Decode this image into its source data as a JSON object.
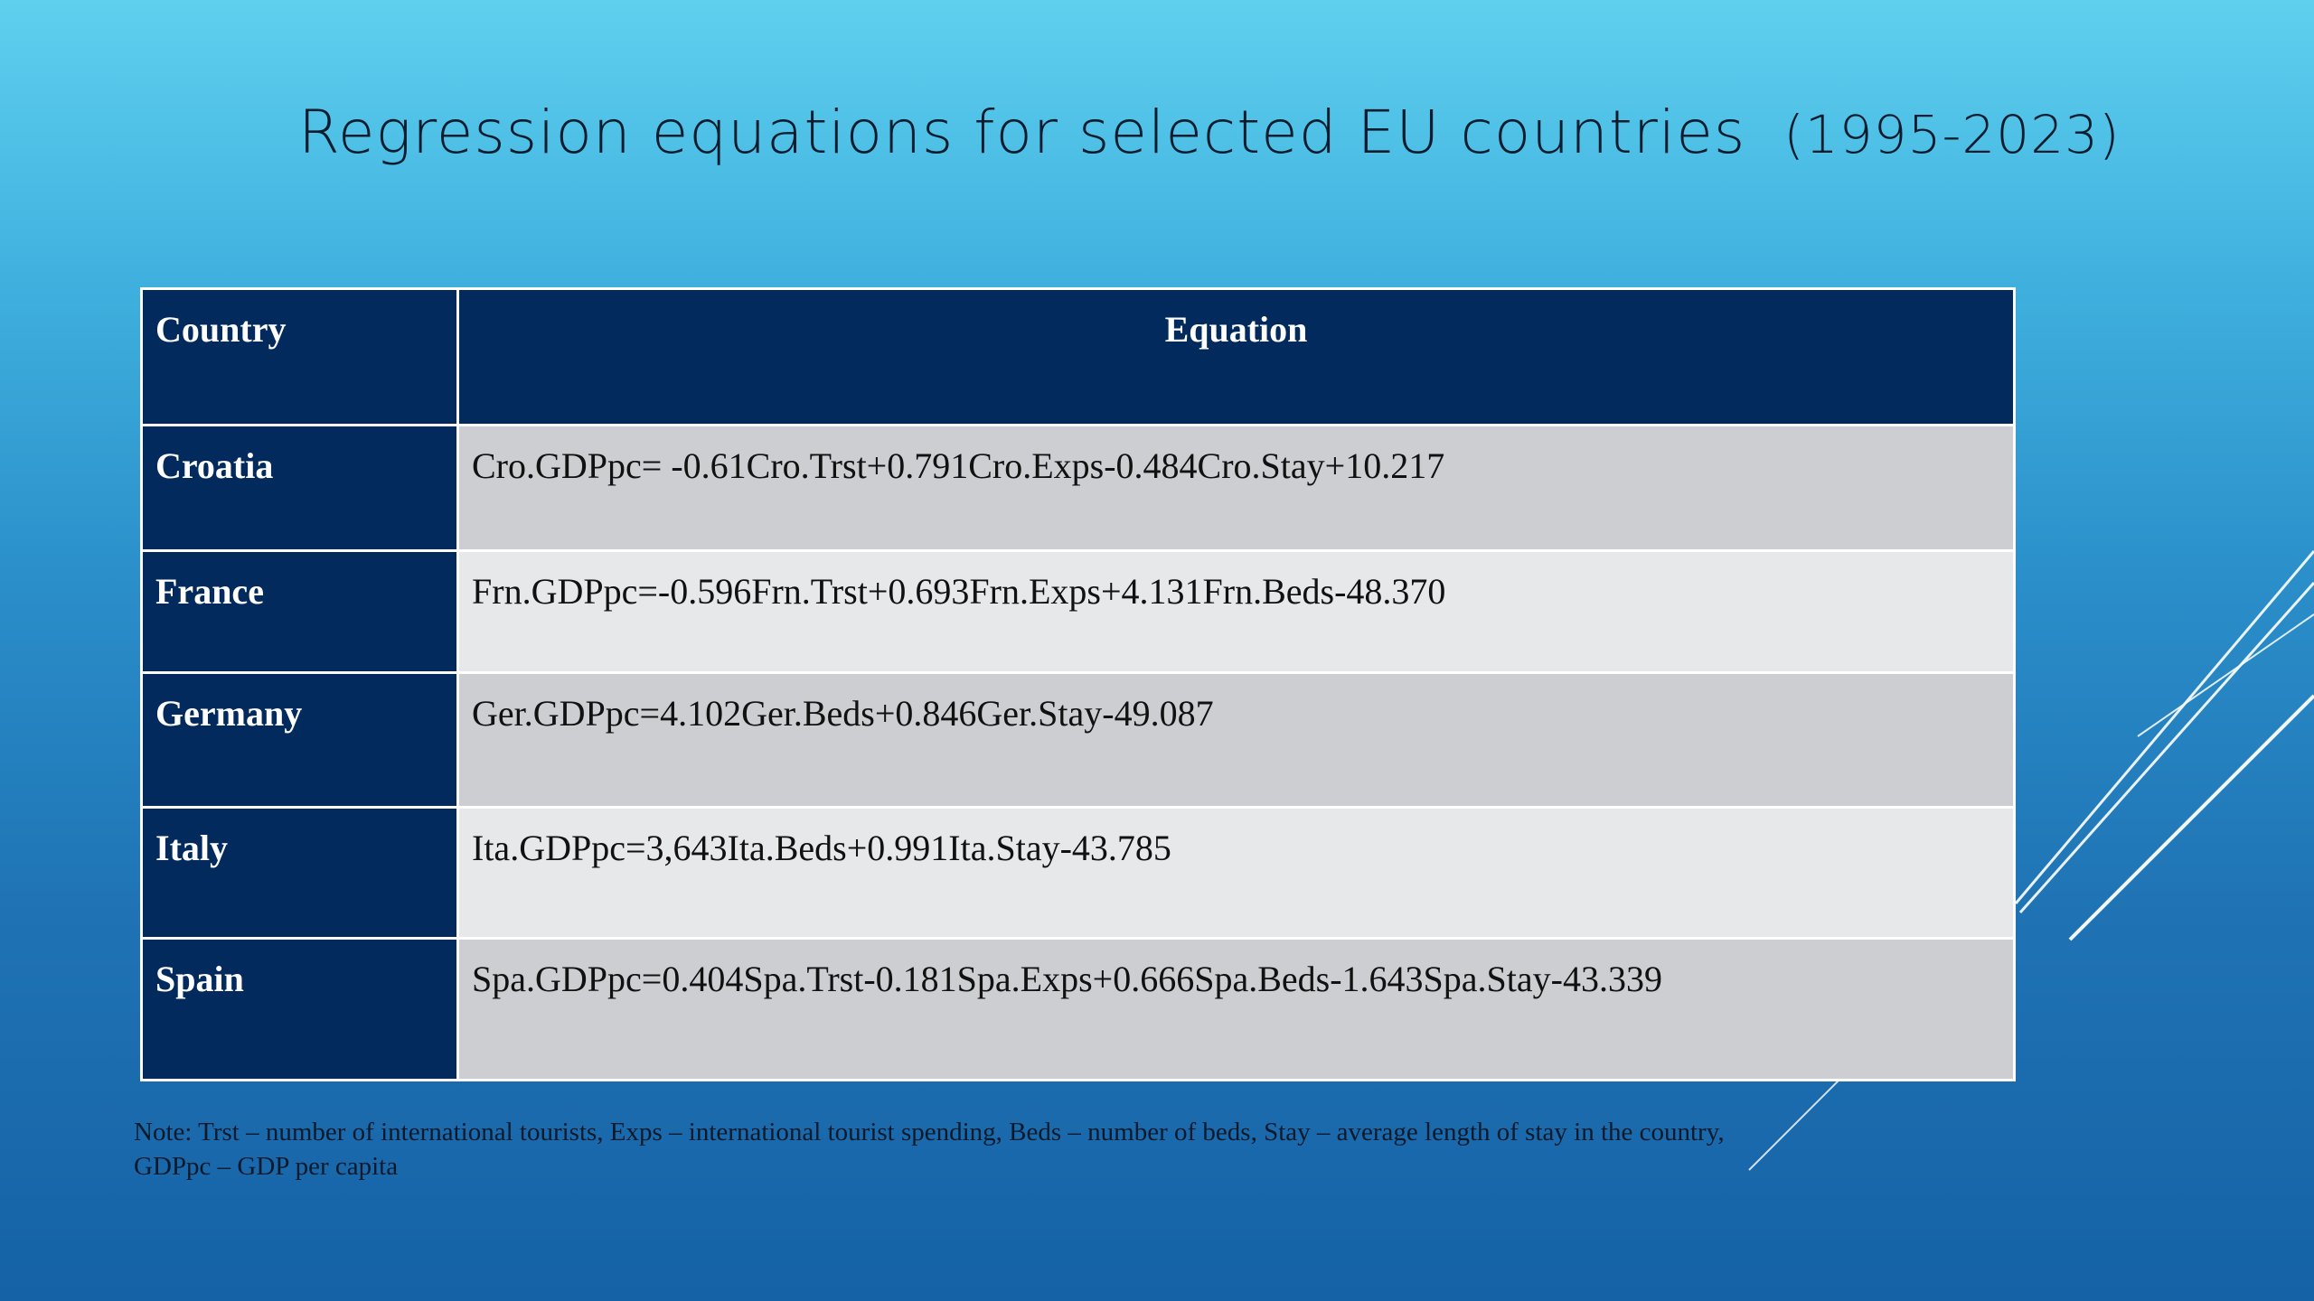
{
  "slide": {
    "title": "Regression equations for selected EU countries",
    "title_range": "(1995-2023)",
    "table": {
      "headers": [
        "Country",
        "Equation"
      ],
      "rows": [
        {
          "country": "Croatia",
          "equation": "Cro.GDPpc= -0.61Cro.Trst+0.791Cro.Exps-0.484Cro.Stay+10.217"
        },
        {
          "country": "France",
          "equation": "Frn.GDPpc=-0.596Frn.Trst+0.693Frn.Exps+4.131Frn.Beds-48.370"
        },
        {
          "country": "Germany",
          "equation": "Ger.GDPpc=4.102Ger.Beds+0.846Ger.Stay-49.087"
        },
        {
          "country": "Italy",
          "equation": "Ita.GDPpc=3,643Ita.Beds+0.991Ita.Stay-43.785"
        },
        {
          "country": "Spain",
          "equation": "Spa.GDPpc=0.404Spa.Trst-0.181Spa.Exps+0.666Spa.Beds-1.643Spa.Stay-43.339"
        }
      ]
    },
    "note_line1": "Note: Trst – number of international tourists, Exps – international tourist spending, Beds – number of beds, Stay – average length of stay in the country,",
    "note_line2": "GDPpc – GDP per capita"
  },
  "colors": {
    "header_bg": "#032a5c",
    "row_dark": "#cdced2",
    "row_light": "#e7e8ea",
    "background_top": "#5fd0ee",
    "background_bottom": "#1562a6"
  }
}
